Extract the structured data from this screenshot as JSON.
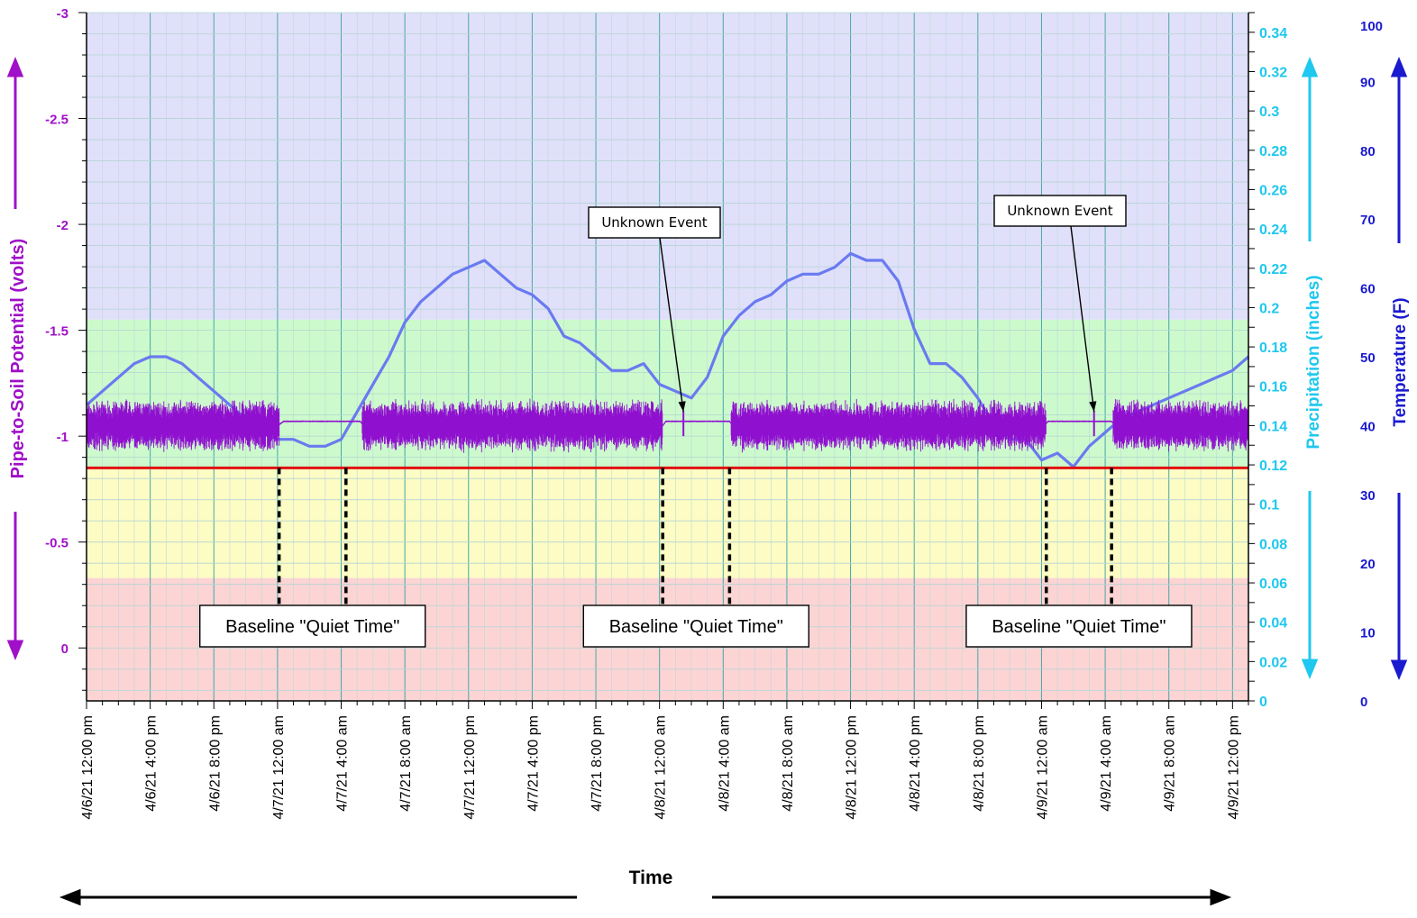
{
  "chart_data": {
    "type": "line",
    "title": "",
    "xlabel": "Time",
    "ylabel_left": "Pipe-to-Soil Potential (volts)",
    "ylabel_right_1": "Precipitation (inches)",
    "ylabel_right_2": "Temperature (F)",
    "y_left_range": [
      -3,
      0.25
    ],
    "y_left_ticks": [
      "-3",
      "-2.5",
      "-2",
      "-1.5",
      "-1",
      "-0.5",
      "0"
    ],
    "y_left_tick_values": [
      -3,
      -2.5,
      -2,
      -1.5,
      -1,
      -0.5,
      0
    ],
    "y_prec_range": [
      0,
      0.35
    ],
    "y_prec_ticks": [
      "0",
      "0.02",
      "0.04",
      "0.06",
      "0.08",
      "0.1",
      "0.12",
      "0.14",
      "0.16",
      "0.18",
      "0.2",
      "0.22",
      "0.24",
      "0.26",
      "0.28",
      "0.3",
      "0.32",
      "0.34"
    ],
    "y_temp_range": [
      0,
      100
    ],
    "y_temp_ticks": [
      "0",
      "10",
      "20",
      "30",
      "40",
      "50",
      "60",
      "70",
      "80",
      "90",
      "100"
    ],
    "x_range_hours": [
      0,
      73
    ],
    "x_ticks": [
      "4/6/21 12:00 pm",
      "4/6/21 4:00 pm",
      "4/6/21 8:00 pm",
      "4/7/21 12:00 am",
      "4/7/21 4:00 am",
      "4/7/21 8:00 am",
      "4/7/21 12:00 pm",
      "4/7/21 4:00 pm",
      "4/7/21 8:00 pm",
      "4/8/21 12:00 am",
      "4/8/21 4:00 am",
      "4/8/21 8:00 am",
      "4/8/21 12:00 pm",
      "4/8/21 4:00 pm",
      "4/8/21 8:00 pm",
      "4/9/21 12:00 am",
      "4/9/21 4:00 am",
      "4/9/21 8:00 am",
      "4/9/21 12:00 pm"
    ],
    "zones": [
      {
        "from": -3.0,
        "to": -1.55,
        "color": "#e0e0fa"
      },
      {
        "from": -1.55,
        "to": -0.85,
        "color": "#ccfacc"
      },
      {
        "from": -0.85,
        "to": -0.33,
        "color": "#fcfcc4"
      },
      {
        "from": -0.33,
        "to": 0.25,
        "color": "#fcd4d4"
      }
    ],
    "threshold_line": {
      "value": -0.85,
      "color": "#e01010"
    },
    "grid": true,
    "series": [
      {
        "color": "#6a7af0",
        "axis": "temperature",
        "x": [
          0,
          1,
          2,
          3,
          4,
          5,
          6,
          7,
          8,
          9,
          10,
          11,
          12,
          13,
          14,
          15,
          16,
          17,
          18,
          19,
          20,
          21,
          22,
          23,
          24,
          25,
          26,
          27,
          28,
          29,
          30,
          31,
          32,
          33,
          34,
          35,
          36,
          37,
          38,
          39,
          40,
          41,
          42,
          43,
          44,
          45,
          46,
          47,
          48,
          49,
          50,
          51,
          52,
          53,
          54,
          55,
          56,
          57,
          58,
          59,
          60,
          61,
          62,
          63,
          64,
          65,
          66,
          67,
          68,
          69,
          70,
          71,
          72,
          73
        ],
        "y": [
          43,
          45,
          47,
          49,
          50,
          50,
          49,
          47,
          45,
          43,
          41,
          39,
          38,
          38,
          37,
          37,
          38,
          42,
          46,
          50,
          55,
          58,
          60,
          62,
          63,
          64,
          62,
          60,
          59,
          57,
          53,
          52,
          50,
          48,
          48,
          49,
          46,
          45,
          44,
          47,
          53,
          56,
          58,
          59,
          61,
          62,
          62,
          63,
          65,
          64,
          64,
          61,
          54,
          49,
          49,
          47,
          44,
          40,
          38,
          38,
          35,
          36,
          34,
          37,
          39,
          41,
          42,
          43,
          44,
          45,
          46,
          47,
          48,
          50
        ]
      },
      {
        "color": "#9010d0",
        "axis": "pipe-to-soil",
        "x": [
          0,
          12,
          12.4,
          17.2,
          17.4,
          36.2,
          36.4,
          40.4,
          40.6,
          60.2,
          60.4,
          64.4,
          64.6,
          73
        ],
        "y": [
          -1.05,
          -1.05,
          -1.07,
          -1.07,
          -1.05,
          -1.05,
          -1.07,
          -1.07,
          -1.05,
          -1.05,
          -1.07,
          -1.07,
          -1.05,
          -1.05
        ],
        "noise_amplitude": 0.13,
        "quiet_intervals": [
          [
            12.1,
            17.3
          ],
          [
            36.2,
            40.5
          ],
          [
            60.3,
            64.5
          ]
        ]
      }
    ],
    "annotations": {
      "baseline_label": "Baseline \"Quiet Time\"",
      "event_label": "Unknown Event",
      "baseline_boxes": [
        {
          "label": "Baseline \"Quiet Time\"",
          "start_hour": 12.1,
          "end_hour": 16.3
        },
        {
          "label": "Baseline \"Quiet Time\"",
          "start_hour": 36.2,
          "end_hour": 40.4
        },
        {
          "label": "Baseline \"Quiet Time\"",
          "start_hour": 60.3,
          "end_hour": 64.4
        }
      ],
      "events": [
        {
          "label": "Unknown Event",
          "hour": 37.5
        },
        {
          "label": "Unknown Event",
          "hour": 63.3
        }
      ]
    }
  }
}
